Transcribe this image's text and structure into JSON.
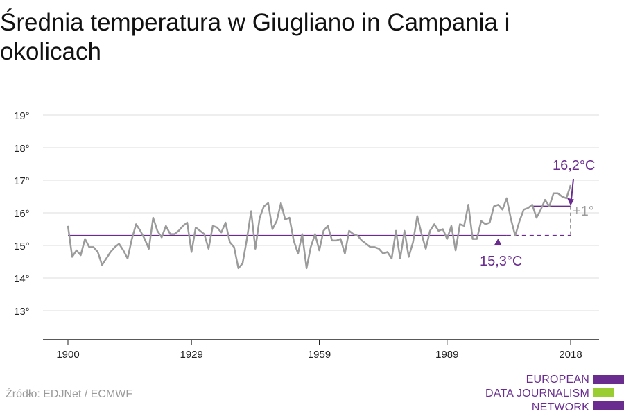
{
  "title": "Średnia temperatura w Giugliano in Campania i okolicach",
  "source": "Źródło: EDJNet / ECMWF",
  "logo": {
    "lines": [
      "EUROPEAN",
      "DATA JOURNALISM",
      "NETWORK"
    ],
    "colors": [
      "#6a2d8f",
      "#9acd32",
      "#6a2d8f"
    ]
  },
  "colors": {
    "series": "#9b9b9b",
    "accent": "#6a2d8f",
    "delta": "#9b9b9b",
    "grid": "#dddddd",
    "axis": "#222222"
  },
  "chart_data": {
    "type": "line",
    "title": "",
    "xlabel": "",
    "ylabel": "",
    "xlim": [
      1900,
      2018
    ],
    "ylim": [
      12,
      19
    ],
    "y_ticks": [
      13,
      14,
      15,
      16,
      17,
      18,
      19
    ],
    "y_tick_labels": [
      "13°",
      "14°",
      "15°",
      "16°",
      "17°",
      "18°",
      "19°"
    ],
    "x_ticks": [
      1900,
      1929,
      1959,
      1989,
      2018
    ],
    "x_tick_labels": [
      "1900",
      "1929",
      "1959",
      "1989",
      "2018"
    ],
    "grid": true,
    "series": [
      {
        "x": [
          1900,
          1901,
          1902,
          1903,
          1904,
          1905,
          1906,
          1907,
          1908,
          1909,
          1910,
          1911,
          1912,
          1913,
          1914,
          1915,
          1916,
          1917,
          1918,
          1919,
          1920,
          1921,
          1922,
          1923,
          1924,
          1925,
          1926,
          1927,
          1928,
          1929,
          1930,
          1931,
          1932,
          1933,
          1934,
          1935,
          1936,
          1937,
          1938,
          1939,
          1940,
          1941,
          1942,
          1943,
          1944,
          1945,
          1946,
          1947,
          1948,
          1949,
          1950,
          1951,
          1952,
          1953,
          1954,
          1955,
          1956,
          1957,
          1958,
          1959,
          1960,
          1961,
          1962,
          1963,
          1964,
          1965,
          1966,
          1967,
          1968,
          1969,
          1970,
          1971,
          1972,
          1973,
          1974,
          1975,
          1976,
          1977,
          1978,
          1979,
          1980,
          1981,
          1982,
          1983,
          1984,
          1985,
          1986,
          1987,
          1988,
          1989,
          1990,
          1991,
          1992,
          1993,
          1994,
          1995,
          1996,
          1997,
          1998,
          1999,
          2000,
          2001,
          2002,
          2003,
          2004,
          2005,
          2006,
          2007,
          2008,
          2009,
          2010,
          2011,
          2012,
          2013,
          2014,
          2015,
          2016,
          2017,
          2018
        ],
        "values": [
          15.6,
          14.65,
          14.85,
          14.7,
          15.2,
          14.95,
          14.95,
          14.8,
          14.4,
          14.6,
          14.8,
          14.95,
          15.05,
          14.85,
          14.6,
          15.2,
          15.65,
          15.45,
          15.2,
          14.9,
          15.85,
          15.45,
          15.25,
          15.6,
          15.35,
          15.35,
          15.45,
          15.6,
          15.7,
          14.8,
          15.55,
          15.45,
          15.35,
          14.9,
          15.6,
          15.55,
          15.4,
          15.7,
          15.1,
          14.95,
          14.3,
          14.45,
          15.2,
          16.05,
          14.9,
          15.85,
          16.2,
          16.3,
          15.5,
          15.75,
          16.3,
          15.8,
          15.85,
          15.15,
          14.75,
          15.35,
          14.3,
          14.95,
          15.35,
          14.85,
          15.45,
          15.6,
          15.15,
          15.15,
          15.2,
          14.75,
          15.45,
          15.35,
          15.3,
          15.15,
          15.05,
          14.95,
          14.95,
          14.9,
          14.75,
          14.8,
          14.6,
          15.45,
          14.6,
          15.45,
          14.65,
          15.1,
          15.9,
          15.35,
          14.9,
          15.45,
          15.65,
          15.45,
          15.5,
          15.2,
          15.6,
          14.85,
          15.65,
          15.6,
          16.25,
          15.2,
          15.2,
          15.75,
          15.65,
          15.7,
          16.2,
          16.25,
          16.1,
          16.45,
          15.8,
          15.3,
          15.75,
          16.1,
          16.15,
          16.25,
          15.85,
          16.1,
          16.4,
          16.2,
          16.6,
          16.6,
          16.5,
          16.45,
          16.85
        ]
      }
    ],
    "baseline": {
      "value": 15.3,
      "label": "15,3°C",
      "solid_end": 2003
    },
    "recent": {
      "value": 16.2,
      "label": "16,2°C",
      "from": 2009,
      "to": 2018
    },
    "delta_label": "+1°"
  }
}
